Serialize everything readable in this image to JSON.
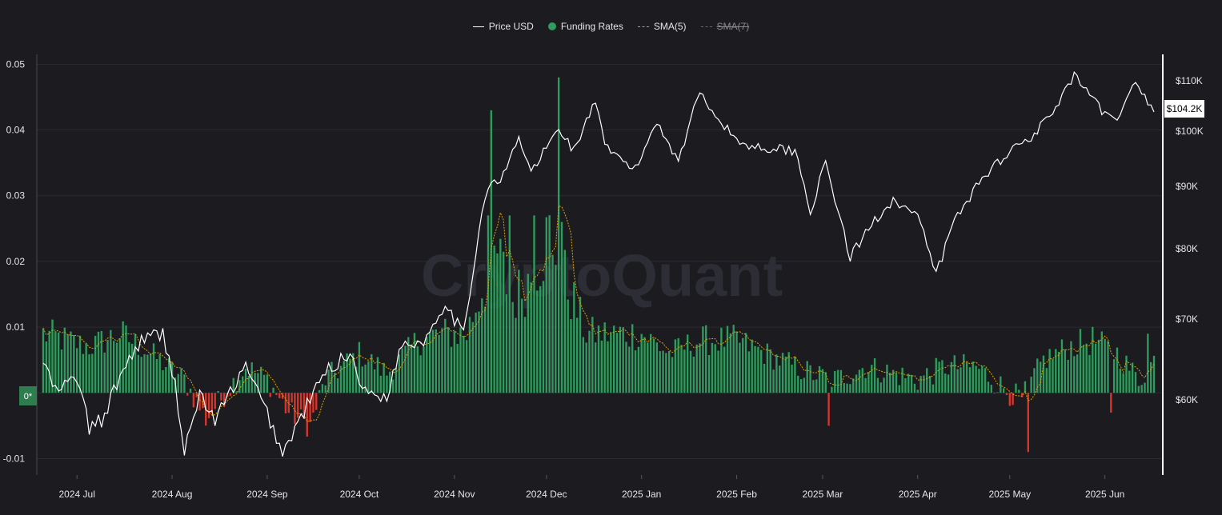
{
  "legend": {
    "price_label": "Price USD",
    "funding_label": "Funding Rates",
    "sma5_label": "SMA(5)",
    "sma7_label": "SMA(7)"
  },
  "watermark": "CryptoQuant",
  "zero_badge": "0*",
  "current_price_label": "$104.2K",
  "colors": {
    "background": "#1b1b20",
    "positive_bar": "#2e9c5c",
    "negative_bar": "#d9362b",
    "price_line": "#ffffff",
    "sma5": "#e0a000",
    "sma7": "#6a6a6a"
  },
  "chart_data": {
    "type": "bar",
    "grid": true,
    "legend_position": "top-center",
    "x_ticks": [
      "2024 Jul",
      "2024 Aug",
      "2024 Sep",
      "2024 Oct",
      "2024 Nov",
      "2024 Dec",
      "2025 Jan",
      "2025 Feb",
      "2025 Mar",
      "2025 Apr",
      "2025 May",
      "2025 Jun"
    ],
    "x_tick_dates": [
      "2024-07-01",
      "2024-08-01",
      "2024-09-01",
      "2024-10-01",
      "2024-11-01",
      "2024-12-01",
      "2025-01-01",
      "2025-02-01",
      "2025-03-01",
      "2025-04-01",
      "2025-05-01",
      "2025-06-01"
    ],
    "x_range": [
      "2024-06-20",
      "2025-06-17"
    ],
    "left_axis": {
      "ticks": [
        "0.05",
        "0.04",
        "0.03",
        "0.02",
        "0.01",
        "-0.01"
      ],
      "tick_values": [
        0.05,
        0.04,
        0.03,
        0.02,
        0.01,
        -0.01
      ],
      "range": [
        -0.0125,
        0.0515
      ]
    },
    "right_axis": {
      "ticks": [
        "$110K",
        "$100K",
        "$90K",
        "$80K",
        "$70K",
        "$60K"
      ],
      "tick_values": [
        110000,
        100000,
        90000,
        80000,
        70000,
        60000
      ]
    },
    "funding_keyframes": [
      [
        "2024-06-20",
        0.009
      ],
      [
        "2024-07-05",
        0.007
      ],
      [
        "2024-07-15",
        0.009
      ],
      [
        "2024-07-25",
        0.006
      ],
      [
        "2024-08-05",
        0.002
      ],
      [
        "2024-08-12",
        -0.004
      ],
      [
        "2024-08-20",
        0.001
      ],
      [
        "2024-08-25",
        0.004
      ],
      [
        "2024-09-01",
        0.002
      ],
      [
        "2024-09-08",
        -0.003
      ],
      [
        "2024-09-15",
        -0.005
      ],
      [
        "2024-09-20",
        0.002
      ],
      [
        "2024-10-01",
        0.006
      ],
      [
        "2024-10-10",
        0.003
      ],
      [
        "2024-10-20",
        0.008
      ],
      [
        "2024-10-28",
        0.009
      ],
      [
        "2024-11-05",
        0.009
      ],
      [
        "2024-11-10",
        0.016
      ],
      [
        "2024-11-15",
        0.021
      ],
      [
        "2024-11-20",
        0.014
      ],
      [
        "2024-11-25",
        0.017
      ],
      [
        "2024-12-02",
        0.024
      ],
      [
        "2024-12-08",
        0.016
      ],
      [
        "2024-12-14",
        0.009
      ],
      [
        "2025-01-01",
        0.009
      ],
      [
        "2025-01-10",
        0.006
      ],
      [
        "2025-01-20",
        0.008
      ],
      [
        "2025-02-01",
        0.008
      ],
      [
        "2025-02-15",
        0.005
      ],
      [
        "2025-02-25",
        0.003
      ],
      [
        "2025-03-05",
        0.002
      ],
      [
        "2025-03-15",
        0.004
      ],
      [
        "2025-04-01",
        0.002
      ],
      [
        "2025-04-10",
        0.004
      ],
      [
        "2025-04-20",
        0.004
      ],
      [
        "2025-05-01",
        0.0
      ],
      [
        "2025-05-05",
        -0.001
      ],
      [
        "2025-05-12",
        0.005
      ],
      [
        "2025-05-20",
        0.007
      ],
      [
        "2025-05-28",
        0.008
      ],
      [
        "2025-06-05",
        0.006
      ],
      [
        "2025-06-12",
        0.002
      ],
      [
        "2025-06-17",
        0.005
      ]
    ],
    "funding_spikes": [
      [
        "2024-11-13",
        0.043
      ],
      [
        "2024-11-12",
        0.027
      ],
      [
        "2024-11-19",
        0.027
      ],
      [
        "2024-11-27",
        0.027
      ],
      [
        "2024-12-05",
        0.048
      ],
      [
        "2024-12-06",
        0.026
      ],
      [
        "2024-12-03",
        0.021
      ],
      [
        "2025-03-03",
        -0.005
      ],
      [
        "2025-05-07",
        -0.009
      ],
      [
        "2025-06-03",
        -0.003
      ],
      [
        "2025-06-15",
        0.009
      ]
    ],
    "price_keyframes": [
      [
        "2024-06-20",
        64800
      ],
      [
        "2024-06-24",
        61000
      ],
      [
        "2024-07-01",
        62800
      ],
      [
        "2024-07-05",
        56700
      ],
      [
        "2024-07-10",
        58000
      ],
      [
        "2024-07-15",
        63000
      ],
      [
        "2024-07-22",
        67500
      ],
      [
        "2024-07-29",
        68200
      ],
      [
        "2024-08-02",
        62000
      ],
      [
        "2024-08-05",
        53800
      ],
      [
        "2024-08-10",
        60800
      ],
      [
        "2024-08-15",
        57500
      ],
      [
        "2024-08-20",
        61000
      ],
      [
        "2024-08-25",
        64000
      ],
      [
        "2024-09-01",
        58500
      ],
      [
        "2024-09-06",
        53900
      ],
      [
        "2024-09-12",
        58000
      ],
      [
        "2024-09-20",
        63500
      ],
      [
        "2024-09-28",
        65800
      ],
      [
        "2024-10-03",
        60800
      ],
      [
        "2024-10-10",
        60500
      ],
      [
        "2024-10-15",
        67000
      ],
      [
        "2024-10-22",
        67200
      ],
      [
        "2024-10-29",
        72300
      ],
      [
        "2024-11-04",
        67800
      ],
      [
        "2024-11-11",
        88700
      ],
      [
        "2024-11-13",
        90500
      ],
      [
        "2024-11-16",
        90700
      ],
      [
        "2024-11-22",
        98800
      ],
      [
        "2024-11-26",
        92500
      ],
      [
        "2024-12-01",
        97000
      ],
      [
        "2024-12-05",
        100500
      ],
      [
        "2024-12-10",
        96500
      ],
      [
        "2024-12-17",
        106000
      ],
      [
        "2024-12-20",
        97000
      ],
      [
        "2024-12-30",
        93000
      ],
      [
        "2025-01-06",
        102000
      ],
      [
        "2025-01-13",
        94500
      ],
      [
        "2025-01-20",
        108000
      ],
      [
        "2025-01-27",
        101500
      ],
      [
        "2025-02-03",
        97500
      ],
      [
        "2025-02-10",
        97000
      ],
      [
        "2025-02-20",
        96500
      ],
      [
        "2025-02-25",
        86000
      ],
      [
        "2025-03-02",
        94000
      ],
      [
        "2025-03-10",
        78500
      ],
      [
        "2025-03-17",
        84000
      ],
      [
        "2025-03-24",
        88000
      ],
      [
        "2025-04-01",
        85000
      ],
      [
        "2025-04-07",
        76200
      ],
      [
        "2025-04-13",
        84500
      ],
      [
        "2025-04-22",
        91500
      ],
      [
        "2025-05-01",
        96500
      ],
      [
        "2025-05-08",
        99000
      ],
      [
        "2025-05-15",
        103500
      ],
      [
        "2025-05-22",
        111000
      ],
      [
        "2025-05-31",
        104000
      ],
      [
        "2025-06-05",
        101500
      ],
      [
        "2025-06-10",
        110000
      ],
      [
        "2025-06-17",
        104200
      ]
    ],
    "sma5_note": "SMA(5)",
    "sma7_visible": false
  }
}
